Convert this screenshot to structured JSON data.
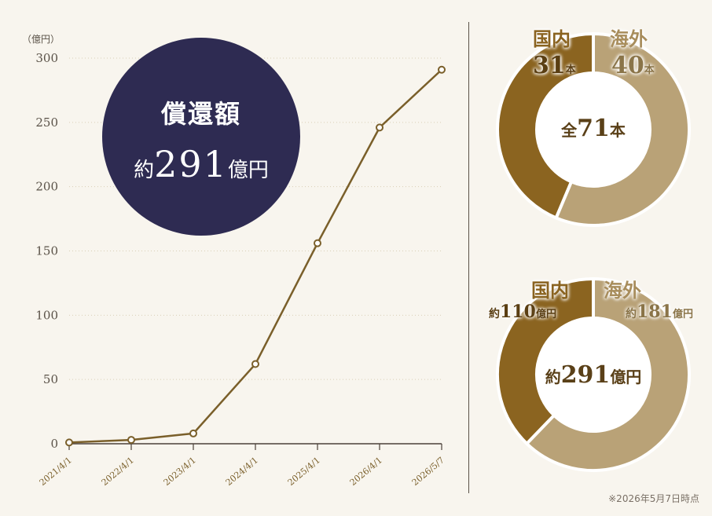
{
  "chart_data": [
    {
      "type": "line",
      "unit_label": "（億円）",
      "x": [
        "2021/4/1",
        "2022/4/1",
        "2023/4/1",
        "2024/4/1",
        "2025/4/1",
        "2026/4/1",
        "2026/5/7"
      ],
      "values": [
        1,
        3,
        8,
        62,
        156,
        246,
        291
      ],
      "ylim": [
        0,
        300
      ],
      "yticks": [
        0,
        50,
        100,
        150,
        200,
        250,
        300
      ],
      "grid": true,
      "line_color": "#7a5f2a"
    },
    {
      "type": "pie",
      "categories": [
        "国内",
        "海外"
      ],
      "values": [
        31,
        40
      ],
      "value_labels": [
        "31",
        "40"
      ],
      "unit": "本",
      "center_prefix": "全",
      "center_value": "71",
      "center_unit": "本",
      "colors": [
        "#8b6420",
        "#b9a277"
      ]
    },
    {
      "type": "pie",
      "categories": [
        "国内",
        "海外"
      ],
      "values": [
        110,
        181
      ],
      "value_labels": [
        "110",
        "181"
      ],
      "prefix": "約",
      "unit": "億円",
      "center_prefix": "約",
      "center_value": "291",
      "center_unit": "億円",
      "colors": [
        "#8b6420",
        "#b9a277"
      ]
    }
  ],
  "badge": {
    "title": "償還額",
    "prefix": "約",
    "value": "291",
    "unit": "億円"
  },
  "footnote": "※2026年5月7日時点"
}
